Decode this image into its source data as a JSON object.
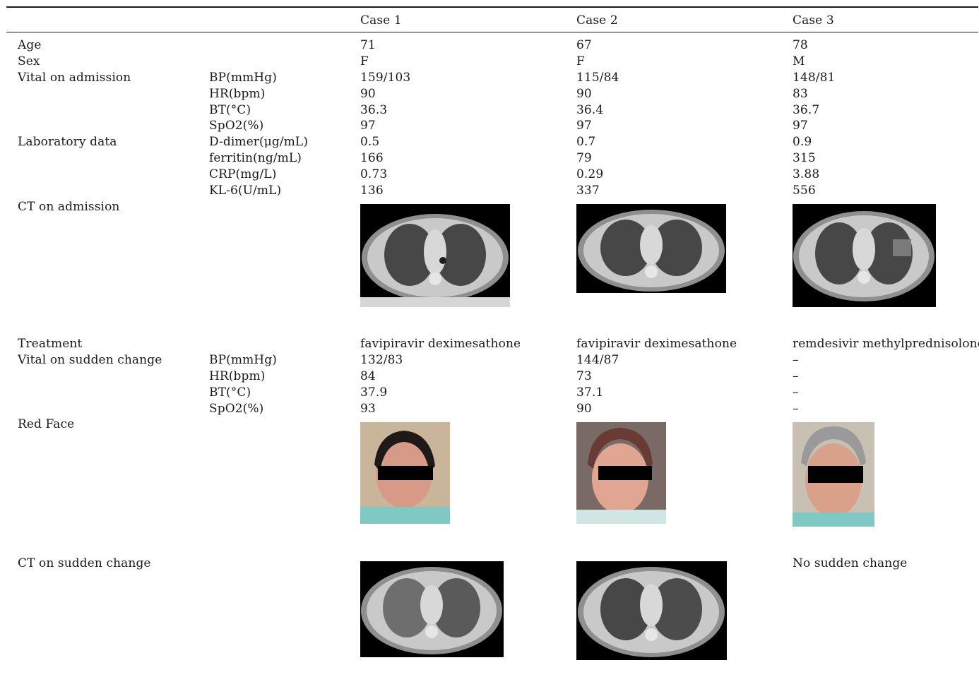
{
  "header": {
    "col0": "",
    "col1": "",
    "case1": "Case 1",
    "case2": "Case 2",
    "case3": "Case 3"
  },
  "rows": {
    "age": {
      "label": "Age",
      "sub": "",
      "c1": "71",
      "c2": "67",
      "c3": "78"
    },
    "sex": {
      "label": "Sex",
      "sub": "",
      "c1": "F",
      "c2": "F",
      "c3": "M"
    },
    "vital_adm": {
      "label": "Vital on admission"
    },
    "bp1": {
      "sub": "BP(mmHg)",
      "c1": "159/103",
      "c2": "115/84",
      "c3": "148/81"
    },
    "hr1": {
      "sub": "HR(bpm)",
      "c1": "90",
      "c2": "90",
      "c3": "83"
    },
    "bt1": {
      "sub": "BT(°C)",
      "c1": "36.3",
      "c2": "36.4",
      "c3": "36.7"
    },
    "spo1": {
      "sub": "SpO2(%)",
      "c1": "97",
      "c2": "97",
      "c3": "97"
    },
    "lab": {
      "label": "Laboratory data"
    },
    "dd": {
      "sub": "D-dimer(μg/mL)",
      "c1": "0.5",
      "c2": "0.7",
      "c3": "0.9"
    },
    "fer": {
      "sub": "ferritin(ng/mL)",
      "c1": "166",
      "c2": "79",
      "c3": "315"
    },
    "crp": {
      "sub": "CRP(mg/L)",
      "c1": "0.73",
      "c2": "0.29",
      "c3": "3.88"
    },
    "kl6": {
      "sub": "KL-6(U/mL)",
      "c1": "136",
      "c2": "337",
      "c3": "556"
    },
    "ct_adm": {
      "label": "CT on admission"
    },
    "treat": {
      "label": "Treatment",
      "c1": "favipiravir deximesathone",
      "c2": "favipiravir deximesathone",
      "c3": "remdesivir methylprednisolone"
    },
    "vital_sc": {
      "label": "Vital on sudden change"
    },
    "bp2": {
      "sub": "BP(mmHg)",
      "c1": "132/83",
      "c2": "144/87",
      "c3": "–"
    },
    "hr2": {
      "sub": "HR(bpm)",
      "c1": "84",
      "c2": "73",
      "c3": "–"
    },
    "bt2": {
      "sub": "BT(°C)",
      "c1": "37.9",
      "c2": "37.1",
      "c3": "–"
    },
    "spo2": {
      "sub": "SpO2(%)",
      "c1": "93",
      "c2": "90",
      "c3": "–"
    },
    "red_face": {
      "label": "Red Face"
    },
    "ct_sc": {
      "label": "CT on sudden change",
      "c3": "No sudden change"
    }
  }
}
